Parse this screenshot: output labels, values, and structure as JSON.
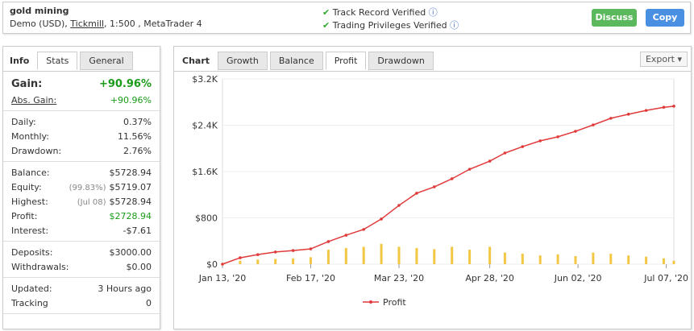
{
  "header": {
    "title": "gold mining",
    "subtitle_parts": [
      "Demo (USD), ",
      "Tickmill",
      ", 1:500 , MetaTrader 4"
    ],
    "verified": [
      "Track Record Verified",
      "Trading Privileges Verified"
    ],
    "buttons": [
      "Discuss",
      "Copy"
    ]
  },
  "info_panel": {
    "tabs": [
      "Info",
      "Stats",
      "General"
    ],
    "groups": [
      [
        {
          "label": "Gain:",
          "value": "+90.96%",
          "color": "#1a9b1a"
        },
        {
          "label": "Abs. Gain:",
          "value": "+90.96%",
          "color": "#1a9b1a"
        }
      ],
      [
        {
          "label": "Daily:",
          "value": "0.37%"
        },
        {
          "label": "Monthly:",
          "value": "11.56%"
        },
        {
          "label": "Drawdown:",
          "value": "2.76%"
        }
      ],
      [
        {
          "label": "Balance:",
          "value": "$5728.94"
        },
        {
          "label": "Equity:",
          "note": "(99.83%)",
          "value": "$5719.07"
        },
        {
          "label": "Highest:",
          "note": "(Jul 08)",
          "value": "$5728.94"
        },
        {
          "label": "Profit:",
          "value": "$2728.94",
          "color": "#1a9b1a"
        },
        {
          "label": "Interest:",
          "value": "-$7.61"
        }
      ],
      [
        {
          "label": "Deposits:",
          "value": "$3000.00"
        },
        {
          "label": "Withdrawals:",
          "value": "$0.00"
        }
      ],
      [
        {
          "label": "Updated:",
          "value": "3 Hours ago"
        },
        {
          "label": "Tracking",
          "value": "0"
        }
      ]
    ]
  },
  "chart_panel": {
    "tabs": [
      "Chart",
      "Growth",
      "Balance",
      "Profit",
      "Drawdown"
    ],
    "export": "Export"
  },
  "chart_data": {
    "type": "line",
    "x": [
      "2020-01-13",
      "2020-01-20",
      "2020-01-27",
      "2020-02-03",
      "2020-02-10",
      "2020-02-17",
      "2020-02-24",
      "2020-03-02",
      "2020-03-09",
      "2020-03-16",
      "2020-03-23",
      "2020-03-30",
      "2020-04-06",
      "2020-04-13",
      "2020-04-20",
      "2020-04-28",
      "2020-05-04",
      "2020-05-11",
      "2020-05-18",
      "2020-05-25",
      "2020-06-01",
      "2020-06-08",
      "2020-06-15",
      "2020-06-22",
      "2020-06-29",
      "2020-07-06",
      "2020-07-10"
    ],
    "series": [
      {
        "name": "Profit",
        "type": "line",
        "color": "#e03a3a",
        "values": [
          0,
          110,
          165,
          210,
          235,
          264,
          390,
          500,
          600,
          780,
          1015,
          1225,
          1335,
          1475,
          1640,
          1780,
          1920,
          2030,
          2130,
          2200,
          2295,
          2405,
          2520,
          2590,
          2655,
          2710,
          2728.94
        ]
      },
      {
        "type": "bar",
        "color": "#f2c744",
        "values": [
          20,
          60,
          80,
          90,
          100,
          120,
          250,
          280,
          300,
          350,
          300,
          280,
          260,
          300,
          250,
          300,
          200,
          180,
          150,
          170,
          140,
          200,
          180,
          150,
          130,
          100,
          60
        ]
      }
    ],
    "xlim": [
      "2020-01-13",
      "2020-07-10"
    ],
    "xticks": [
      {
        "value": "2020-01-13",
        "label": "Jan 13, '20"
      },
      {
        "value": "2020-02-17",
        "label": "Feb 17, '20"
      },
      {
        "value": "2020-03-23",
        "label": "Mar 23, '20"
      },
      {
        "value": "2020-04-28",
        "label": "Apr 28, '20"
      },
      {
        "value": "2020-06-02",
        "label": "Jun 02, '20"
      },
      {
        "value": "2020-07-07",
        "label": "Jul 07, '20"
      }
    ],
    "ylim": [
      0,
      3200
    ],
    "yticks": [
      {
        "value": 0,
        "label": "$0"
      },
      {
        "value": 800,
        "label": "$800"
      },
      {
        "value": 1600,
        "label": "$1.6K"
      },
      {
        "value": 2400,
        "label": "$2.4K"
      },
      {
        "value": 3200,
        "label": "$3.2K"
      }
    ],
    "grid": true
  }
}
